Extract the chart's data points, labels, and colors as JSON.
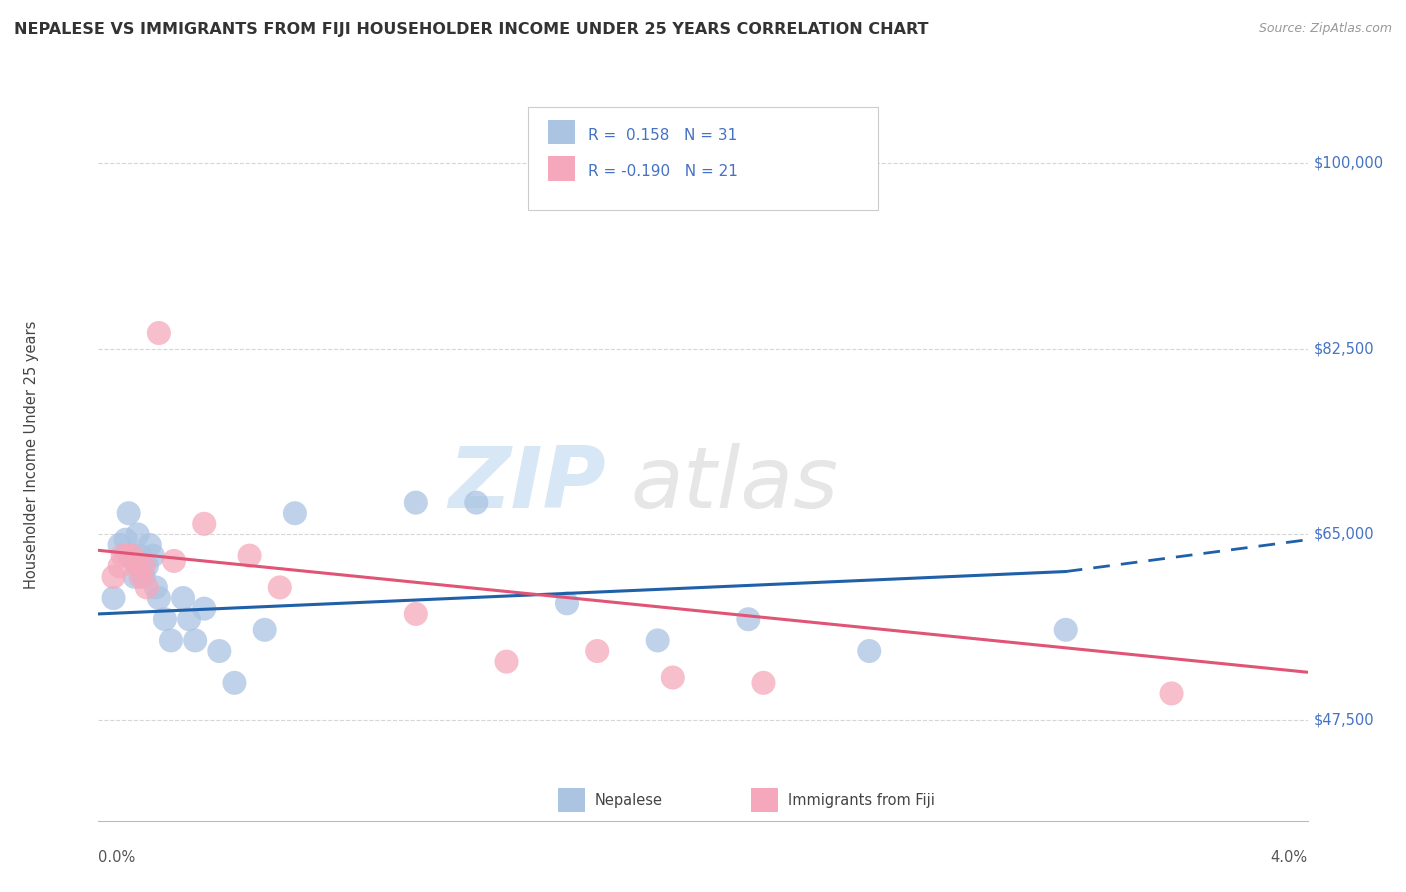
{
  "title": "NEPALESE VS IMMIGRANTS FROM FIJI HOUSEHOLDER INCOME UNDER 25 YEARS CORRELATION CHART",
  "source": "Source: ZipAtlas.com",
  "ylabel": "Householder Income Under 25 years",
  "y_ticks": [
    47500,
    65000,
    82500,
    100000
  ],
  "y_tick_labels": [
    "$47,500",
    "$65,000",
    "$82,500",
    "$100,000"
  ],
  "x_min": 0.0,
  "x_max": 4.0,
  "y_min": 38000,
  "y_max": 107000,
  "legend1_R": "0.158",
  "legend1_N": "31",
  "legend2_R": "-0.190",
  "legend2_N": "21",
  "nepalese_color": "#aac4e2",
  "fiji_color": "#f5a8bc",
  "nepalese_line_color": "#2060a8",
  "fiji_line_color": "#e05575",
  "nepalese_x": [
    0.05,
    0.07,
    0.09,
    0.1,
    0.11,
    0.12,
    0.13,
    0.14,
    0.15,
    0.16,
    0.17,
    0.18,
    0.19,
    0.2,
    0.22,
    0.24,
    0.28,
    0.3,
    0.32,
    0.35,
    0.4,
    0.45,
    0.55,
    0.65,
    1.05,
    1.25,
    1.55,
    1.85,
    2.15,
    2.55,
    3.2
  ],
  "nepalese_y": [
    59000,
    64000,
    64500,
    67000,
    63000,
    61000,
    65000,
    63000,
    61000,
    62000,
    64000,
    63000,
    60000,
    59000,
    57000,
    55000,
    59000,
    57000,
    55000,
    58000,
    54000,
    51000,
    56000,
    67000,
    68000,
    68000,
    58500,
    55000,
    57000,
    54000,
    56000
  ],
  "fiji_x": [
    0.05,
    0.07,
    0.08,
    0.1,
    0.11,
    0.12,
    0.13,
    0.14,
    0.15,
    0.16,
    0.2,
    0.25,
    0.35,
    0.5,
    0.6,
    1.05,
    1.35,
    1.65,
    1.9,
    2.2,
    3.55
  ],
  "fiji_y": [
    61000,
    62000,
    63000,
    63000,
    63000,
    62500,
    62000,
    61000,
    62000,
    60000,
    84000,
    62500,
    66000,
    63000,
    60000,
    57500,
    53000,
    54000,
    51500,
    51000,
    50000
  ],
  "nepalese_line_x0": 0.0,
  "nepalese_line_y0": 57500,
  "nepalese_line_x1": 3.2,
  "nepalese_line_y1": 61500,
  "nepalese_dash_x1": 4.0,
  "nepalese_dash_y1": 64500,
  "fiji_line_x0": 0.0,
  "fiji_line_y0": 63500,
  "fiji_line_x1": 4.0,
  "fiji_line_y1": 52000,
  "background_color": "#ffffff",
  "grid_color": "#cccccc"
}
